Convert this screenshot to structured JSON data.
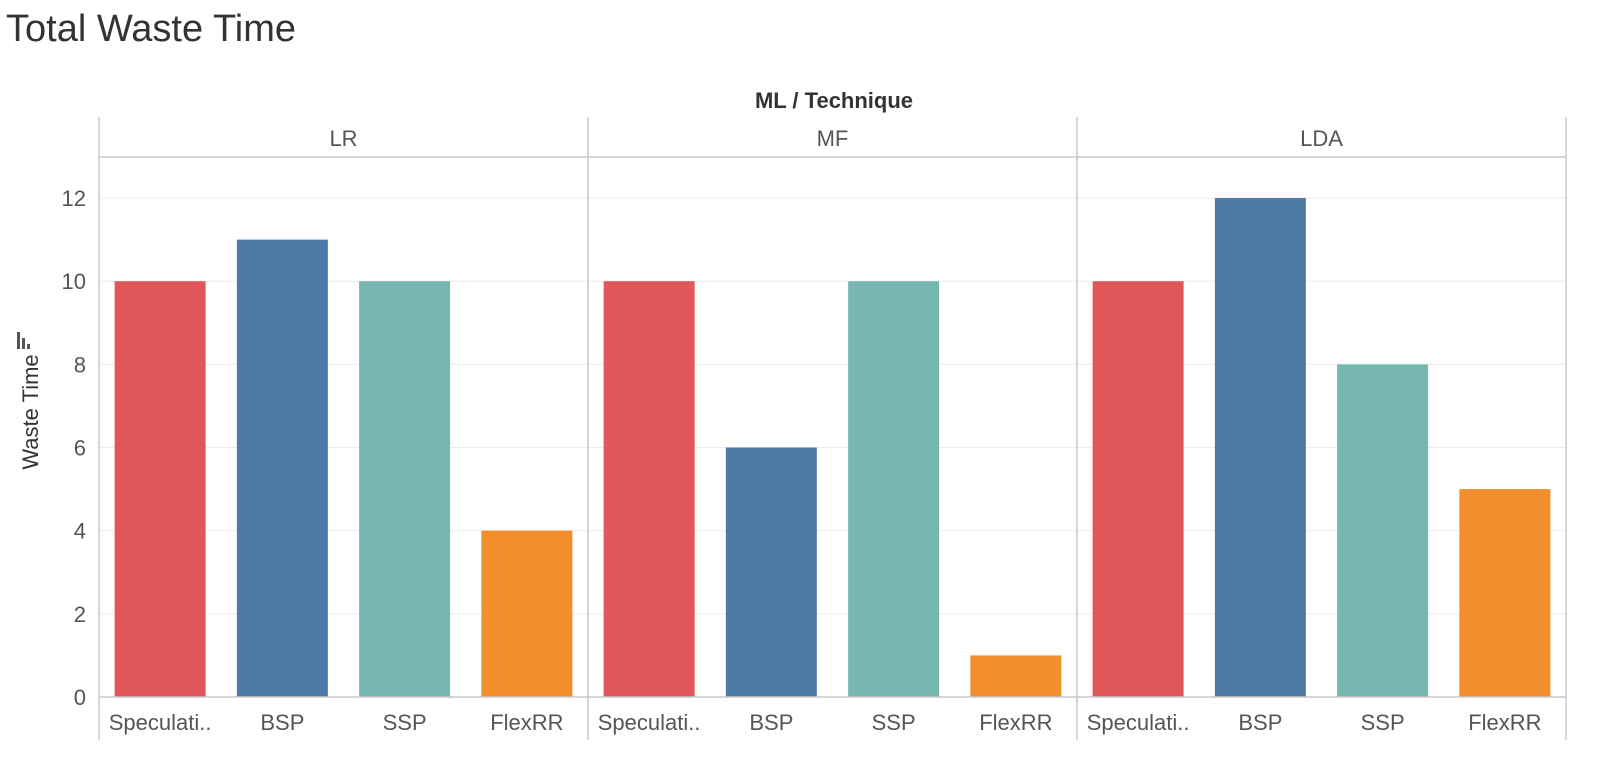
{
  "page": {
    "title": "Total Waste Time"
  },
  "colors": {
    "Speculative": "#e15759",
    "BSP": "#4e79a7",
    "SSP": "#76b7b2",
    "FlexRR": "#f28e2b",
    "grid": "#ececec",
    "axis": "#c8c8c8",
    "text": "#555555"
  },
  "chart_data": {
    "type": "bar",
    "title": "Total Waste Time",
    "column_header": "ML / Technique",
    "ylabel": "Waste Time",
    "xlabel": "",
    "ylim": [
      0,
      13
    ],
    "yticks": [
      0,
      2,
      4,
      6,
      8,
      10,
      12
    ],
    "grid": true,
    "legend": "none",
    "categories": [
      "Speculati..",
      "BSP",
      "SSP",
      "FlexRR"
    ],
    "series_keys": [
      "Speculative",
      "BSP",
      "SSP",
      "FlexRR"
    ],
    "panels": [
      {
        "name": "LR",
        "values": [
          10,
          11,
          10,
          4
        ]
      },
      {
        "name": "MF",
        "values": [
          10,
          6,
          10,
          1
        ]
      },
      {
        "name": "LDA",
        "values": [
          10,
          12,
          8,
          5
        ]
      }
    ]
  }
}
